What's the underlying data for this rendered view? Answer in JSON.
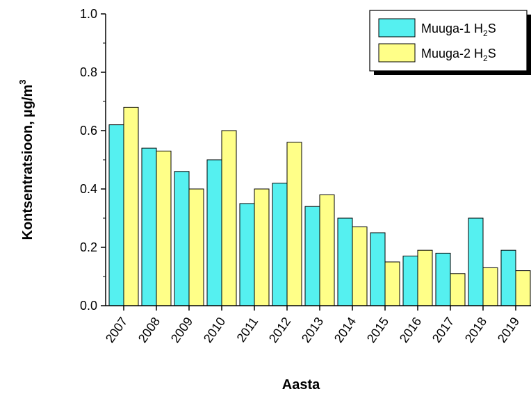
{
  "chart_data": {
    "type": "bar",
    "categories": [
      "2007",
      "2008",
      "2009",
      "2010",
      "2011",
      "2012",
      "2013",
      "2014",
      "2015",
      "2016",
      "2017",
      "2018",
      "2019"
    ],
    "series": [
      {
        "name": "Muuga-1 H2S",
        "label_main": "Muuga-1 H",
        "label_sub": "2",
        "label_end": "S",
        "color": "#55f0f0",
        "values": [
          0.62,
          0.54,
          0.46,
          0.5,
          0.35,
          0.42,
          0.34,
          0.3,
          0.25,
          0.17,
          0.18,
          0.3,
          0.19
        ]
      },
      {
        "name": "Muuga-2 H2S",
        "label_main": "Muuga-2 H",
        "label_sub": "2",
        "label_end": "S",
        "color": "#ffff88",
        "values": [
          0.68,
          0.53,
          0.4,
          0.6,
          0.4,
          0.56,
          0.38,
          0.27,
          0.15,
          0.19,
          0.11,
          0.13,
          0.12
        ]
      }
    ],
    "xlabel": "Aasta",
    "ylabel_main": "Kontsentratsioon, µg/m",
    "ylabel_sup": "3",
    "ylim": [
      0,
      1.0
    ],
    "yticks": [
      0.0,
      0.2,
      0.4,
      0.6,
      0.8,
      1.0
    ],
    "ytick_labels": [
      "0.0",
      "0.2",
      "0.4",
      "0.6",
      "0.8",
      "1.0"
    ],
    "grid": false,
    "legend_position": "top-right"
  }
}
